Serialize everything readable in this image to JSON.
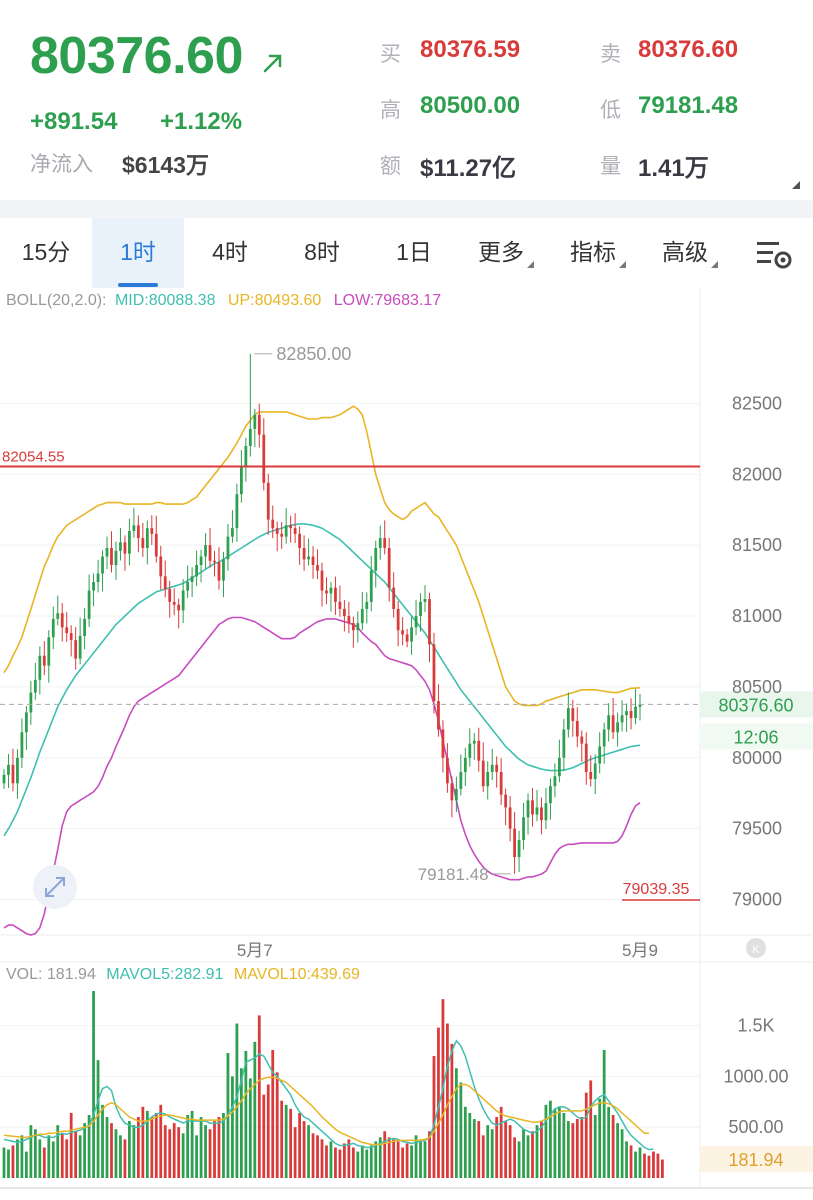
{
  "header": {
    "last_price": "80376.60",
    "change": "+891.54",
    "change_pct": "+1.12%",
    "net_inflow_label": "净流入",
    "net_inflow_value": "$6143万",
    "buy_label": "买",
    "buy_value": "80376.59",
    "sell_label": "卖",
    "sell_value": "80376.60",
    "high_label": "高",
    "high_value": "80500.00",
    "low_label": "低",
    "low_value": "79181.48",
    "amount_label": "额",
    "amount_value": "$11.27亿",
    "volume_label": "量",
    "volume_value": "1.41万"
  },
  "tabs": [
    {
      "label": "15分",
      "active": false
    },
    {
      "label": "1时",
      "active": true
    },
    {
      "label": "4时",
      "active": false
    },
    {
      "label": "8时",
      "active": false
    },
    {
      "label": "1日",
      "active": false
    },
    {
      "label": "更多",
      "dropdown": true
    },
    {
      "label": "指标",
      "dropdown": true
    },
    {
      "label": "高级",
      "dropdown": true
    }
  ],
  "settings_icon": "chart-settings-icon",
  "colors": {
    "up": "#2e9f4f",
    "down": "#d93a3a",
    "mid": "#3fbfb0",
    "upper": "#e8b524",
    "lower": "#c74cc0",
    "mavol5": "#3fbfb0",
    "mavol10": "#e8b524"
  },
  "chart_data": [
    {
      "type": "candlestick",
      "indicator": "BOLL(20,2.0)",
      "legend": {
        "title": "BOLL(20,2.0):",
        "mid": "MID:80088.38",
        "up": "UP:80493.60",
        "low": "LOW:79683.17"
      },
      "y_ticks": [
        "82500",
        "82000",
        "81500",
        "81000",
        "80500",
        "80000",
        "79500",
        "79000"
      ],
      "ylim": [
        78750,
        83300
      ],
      "x_labels": [
        {
          "index": 56,
          "label": "5月7"
        },
        {
          "index": 142,
          "label": "5月9"
        }
      ],
      "annotations": {
        "max_label": "82850.00",
        "max_value": 82850.0,
        "max_index": 55,
        "min_label": "79181.48",
        "min_value": 79181.48,
        "min_index": 114,
        "red_line_label": "82054.55",
        "red_line_value": 82054.55,
        "right_red_label": "79039.35",
        "right_red_value": 79039.35,
        "current_price_label": "80376.60",
        "current_price_value": 80376.6,
        "countdown": "12:06"
      },
      "closes": [
        79880,
        79950,
        79820,
        80000,
        80180,
        80320,
        80460,
        80550,
        80720,
        80650,
        80850,
        80980,
        81020,
        80920,
        80880,
        80830,
        80700,
        80860,
        80980,
        81180,
        81240,
        81300,
        81420,
        81480,
        81360,
        81460,
        81520,
        81440,
        81600,
        81640,
        81550,
        81480,
        81620,
        81580,
        81420,
        81280,
        81190,
        81100,
        81080,
        81040,
        81180,
        81240,
        81280,
        81360,
        81420,
        81500,
        81390,
        81380,
        81250,
        81400,
        81560,
        81620,
        81860,
        82060,
        82200,
        82320,
        82420,
        82280,
        81940,
        81680,
        81620,
        81580,
        81560,
        81640,
        81620,
        81580,
        81480,
        81400,
        81420,
        81360,
        81320,
        81180,
        81160,
        81200,
        81100,
        81050,
        81000,
        80950,
        80900,
        80950,
        81050,
        81100,
        81320,
        81480,
        81550,
        81480,
        81200,
        81050,
        80900,
        80870,
        80820,
        80920,
        81000,
        81100,
        81120,
        80800,
        80400,
        80200,
        80000,
        79820,
        79700,
        79780,
        79900,
        80000,
        80100,
        80120,
        79980,
        79800,
        79900,
        79950,
        79900,
        79740,
        79650,
        79500,
        79300,
        79420,
        79580,
        79700,
        79600,
        79650,
        79560,
        79680,
        79800,
        79870,
        80000,
        80200,
        80350,
        80260,
        80150,
        80100,
        79900,
        79850,
        79960,
        80080,
        80200,
        80300,
        80180,
        80250,
        80300,
        80330,
        80280,
        80360,
        80376.6
      ],
      "mid": [
        79450,
        79500,
        79560,
        79620,
        79700,
        79780,
        79860,
        79950,
        80040,
        80120,
        80200,
        80280,
        80360,
        80420,
        80480,
        80530,
        80580,
        80620,
        80660,
        80700,
        80740,
        80780,
        80820,
        80860,
        80900,
        80940,
        80970,
        81000,
        81030,
        81060,
        81090,
        81110,
        81130,
        81150,
        81170,
        81180,
        81190,
        81200,
        81210,
        81220,
        81230,
        81250,
        81270,
        81290,
        81310,
        81330,
        81350,
        81370,
        81380,
        81400,
        81420,
        81440,
        81460,
        81480,
        81500,
        81520,
        81540,
        81560,
        81575,
        81590,
        81600,
        81610,
        81620,
        81630,
        81640,
        81645,
        81650,
        81650,
        81645,
        81640,
        81630,
        81620,
        81600,
        81580,
        81560,
        81540,
        81510,
        81480,
        81450,
        81420,
        81390,
        81360,
        81330,
        81300,
        81270,
        81240,
        81200,
        81160,
        81120,
        81080,
        81040,
        81000,
        80960,
        80920,
        80880,
        80830,
        80780,
        80730,
        80680,
        80630,
        80580,
        80530,
        80480,
        80440,
        80400,
        80360,
        80320,
        80280,
        80240,
        80200,
        80160,
        80120,
        80080,
        80050,
        80020,
        79990,
        79970,
        79950,
        79940,
        79930,
        79920,
        79915,
        79910,
        79910,
        79910,
        79915,
        79920,
        79930,
        79945,
        79960,
        79975,
        79990,
        80000,
        80010,
        80020,
        80030,
        80040,
        80050,
        80060,
        80070,
        80080,
        80085,
        80088.38
      ],
      "upper": [
        80600,
        80650,
        80720,
        80780,
        80850,
        80950,
        81050,
        81150,
        81250,
        81350,
        81420,
        81500,
        81560,
        81600,
        81640,
        81660,
        81680,
        81700,
        81720,
        81740,
        81760,
        81780,
        81790,
        81800,
        81800,
        81800,
        81800,
        81790,
        81790,
        81790,
        81790,
        81790,
        81790,
        81790,
        81800,
        81800,
        81790,
        81790,
        81790,
        81790,
        81790,
        81800,
        81820,
        81840,
        81880,
        81920,
        81960,
        82000,
        82040,
        82080,
        82120,
        82170,
        82220,
        82280,
        82340,
        82380,
        82420,
        82440,
        82440,
        82440,
        82440,
        82440,
        82440,
        82440,
        82430,
        82420,
        82410,
        82400,
        82390,
        82390,
        82390,
        82400,
        82400,
        82400,
        82410,
        82420,
        82440,
        82460,
        82480,
        82460,
        82420,
        82300,
        82150,
        82000,
        81900,
        81800,
        81750,
        81720,
        81700,
        81680,
        81700,
        81740,
        81760,
        81780,
        81800,
        81760,
        81720,
        81700,
        81650,
        81600,
        81550,
        81500,
        81420,
        81340,
        81260,
        81180,
        81100,
        81000,
        80900,
        80800,
        80700,
        80600,
        80500,
        80450,
        80400,
        80380,
        80370,
        80370,
        80370,
        80370,
        80380,
        80400,
        80410,
        80420,
        80430,
        80440,
        80450,
        80460,
        80470,
        80480,
        80480,
        80480,
        80480,
        80475,
        80470,
        80465,
        80460,
        80460,
        80470,
        80480,
        80490,
        80492,
        80493.6
      ],
      "lower": [
        78800,
        78820,
        78820,
        78800,
        78780,
        78760,
        78750,
        78760,
        78800,
        78900,
        79050,
        79200,
        79350,
        79520,
        79620,
        79660,
        79680,
        79700,
        79720,
        79740,
        79760,
        79800,
        79860,
        79940,
        80000,
        80080,
        80150,
        80220,
        80300,
        80360,
        80400,
        80420,
        80440,
        80460,
        80480,
        80500,
        80520,
        80540,
        80560,
        80580,
        80620,
        80660,
        80700,
        80740,
        80780,
        80820,
        80860,
        80900,
        80940,
        80960,
        80980,
        80990,
        80990,
        80990,
        80980,
        80970,
        80960,
        80940,
        80920,
        80900,
        80880,
        80860,
        80840,
        80840,
        80840,
        80850,
        80880,
        80900,
        80920,
        80940,
        80960,
        80970,
        80980,
        80980,
        80980,
        80970,
        80960,
        80950,
        80940,
        80920,
        80880,
        80850,
        80820,
        80800,
        80760,
        80720,
        80700,
        80690,
        80680,
        80670,
        80660,
        80650,
        80620,
        80580,
        80540,
        80480,
        80380,
        80260,
        80120,
        79980,
        79840,
        79700,
        79560,
        79460,
        79380,
        79320,
        79270,
        79230,
        79200,
        79180,
        79170,
        79160,
        79150,
        79140,
        79140,
        79140,
        79150,
        79160,
        79160,
        79170,
        79180,
        79200,
        79260,
        79320,
        79360,
        79380,
        79390,
        79390,
        79395,
        79400,
        79400,
        79400,
        79400,
        79400,
        79400,
        79400,
        79400,
        79410,
        79450,
        79520,
        79600,
        79660,
        79683.17
      ]
    },
    {
      "type": "bar",
      "indicator": "VOL",
      "legend": {
        "vol": "VOL: 181.94",
        "mavol5": "MAVOL5:282.91",
        "mavol10": "MAVOL10:439.69"
      },
      "y_ticks": [
        "1.5K",
        "1000.00",
        "500.00"
      ],
      "current_label": "181.94",
      "ylim": [
        0,
        1850
      ],
      "values": [
        300,
        280,
        320,
        380,
        420,
        260,
        520,
        480,
        380,
        300,
        420,
        360,
        520,
        440,
        380,
        640,
        460,
        420,
        540,
        620,
        1840,
        1160,
        720,
        600,
        540,
        480,
        420,
        380,
        560,
        520,
        600,
        700,
        660,
        600,
        640,
        720,
        520,
        480,
        540,
        500,
        440,
        620,
        660,
        420,
        600,
        520,
        480,
        560,
        600,
        640,
        1230,
        1000,
        1520,
        1080,
        1250,
        980,
        1340,
        1600,
        820,
        920,
        1260,
        1040,
        760,
        720,
        680,
        500,
        640,
        560,
        520,
        440,
        420,
        380,
        320,
        360,
        300,
        280,
        340,
        380,
        300,
        260,
        320,
        280,
        320,
        360,
        400,
        460,
        400,
        380,
        360,
        300,
        340,
        320,
        420,
        380,
        360,
        460,
        1200,
        1480,
        1760,
        1520,
        1320,
        1080,
        940,
        700,
        640,
        580,
        560,
        420,
        520,
        480,
        600,
        700,
        560,
        520,
        400,
        360,
        480,
        420,
        460,
        520,
        560,
        720,
        760,
        680,
        700,
        640,
        560,
        540,
        580,
        600,
        840,
        960,
        620,
        780,
        1260,
        700,
        620,
        540,
        480,
        360,
        320,
        260,
        300,
        240,
        220,
        260,
        240,
        181.94
      ],
      "mavol5": [
        380,
        370,
        360,
        350,
        360,
        380,
        400,
        420,
        420,
        400,
        400,
        400,
        420,
        440,
        430,
        450,
        460,
        470,
        490,
        520,
        620,
        760,
        880,
        900,
        860,
        700,
        600,
        540,
        520,
        500,
        500,
        520,
        560,
        600,
        630,
        640,
        630,
        600,
        580,
        560,
        540,
        560,
        560,
        560,
        560,
        560,
        540,
        540,
        540,
        560,
        620,
        700,
        800,
        960,
        1140,
        1160,
        1180,
        1220,
        1200,
        1120,
        1040,
        1000,
        940,
        880,
        820,
        720,
        650,
        600,
        580,
        540,
        500,
        460,
        420,
        380,
        340,
        320,
        320,
        330,
        340,
        320,
        310,
        300,
        300,
        320,
        340,
        360,
        380,
        390,
        380,
        360,
        350,
        340,
        350,
        360,
        370,
        400,
        520,
        700,
        880,
        1100,
        1250,
        1350,
        1300,
        1200,
        1050,
        900,
        780,
        680,
        600,
        540,
        520,
        540,
        560,
        580,
        560,
        520,
        480,
        460,
        440,
        460,
        500,
        560,
        620,
        680,
        700,
        700,
        680,
        640,
        600,
        580,
        600,
        700,
        760,
        800,
        820,
        760,
        700,
        640,
        560,
        480,
        420,
        380,
        340,
        300,
        280,
        282.91
      ],
      "mavol10": [
        420,
        415,
        410,
        405,
        400,
        400,
        410,
        420,
        430,
        430,
        440,
        440,
        450,
        460,
        460,
        470,
        480,
        490,
        500,
        510,
        560,
        620,
        680,
        720,
        740,
        720,
        680,
        640,
        600,
        580,
        560,
        560,
        560,
        580,
        600,
        610,
        620,
        620,
        610,
        600,
        590,
        580,
        580,
        570,
        570,
        570,
        570,
        570,
        570,
        580,
        610,
        650,
        700,
        760,
        830,
        880,
        920,
        960,
        980,
        990,
        990,
        980,
        960,
        940,
        900,
        860,
        820,
        780,
        740,
        700,
        650,
        600,
        560,
        520,
        480,
        450,
        430,
        410,
        390,
        370,
        350,
        340,
        330,
        330,
        330,
        340,
        350,
        360,
        370,
        370,
        370,
        370,
        370,
        370,
        380,
        400,
        460,
        540,
        620,
        720,
        800,
        880,
        920,
        920,
        900,
        860,
        820,
        780,
        740,
        700,
        660,
        630,
        610,
        600,
        590,
        580,
        570,
        560,
        550,
        550,
        560,
        580,
        600,
        630,
        650,
        660,
        660,
        660,
        660,
        660,
        680,
        700,
        720,
        740,
        740,
        730,
        710,
        680,
        640,
        600,
        560,
        520,
        480,
        440,
        439.69
      ]
    }
  ]
}
